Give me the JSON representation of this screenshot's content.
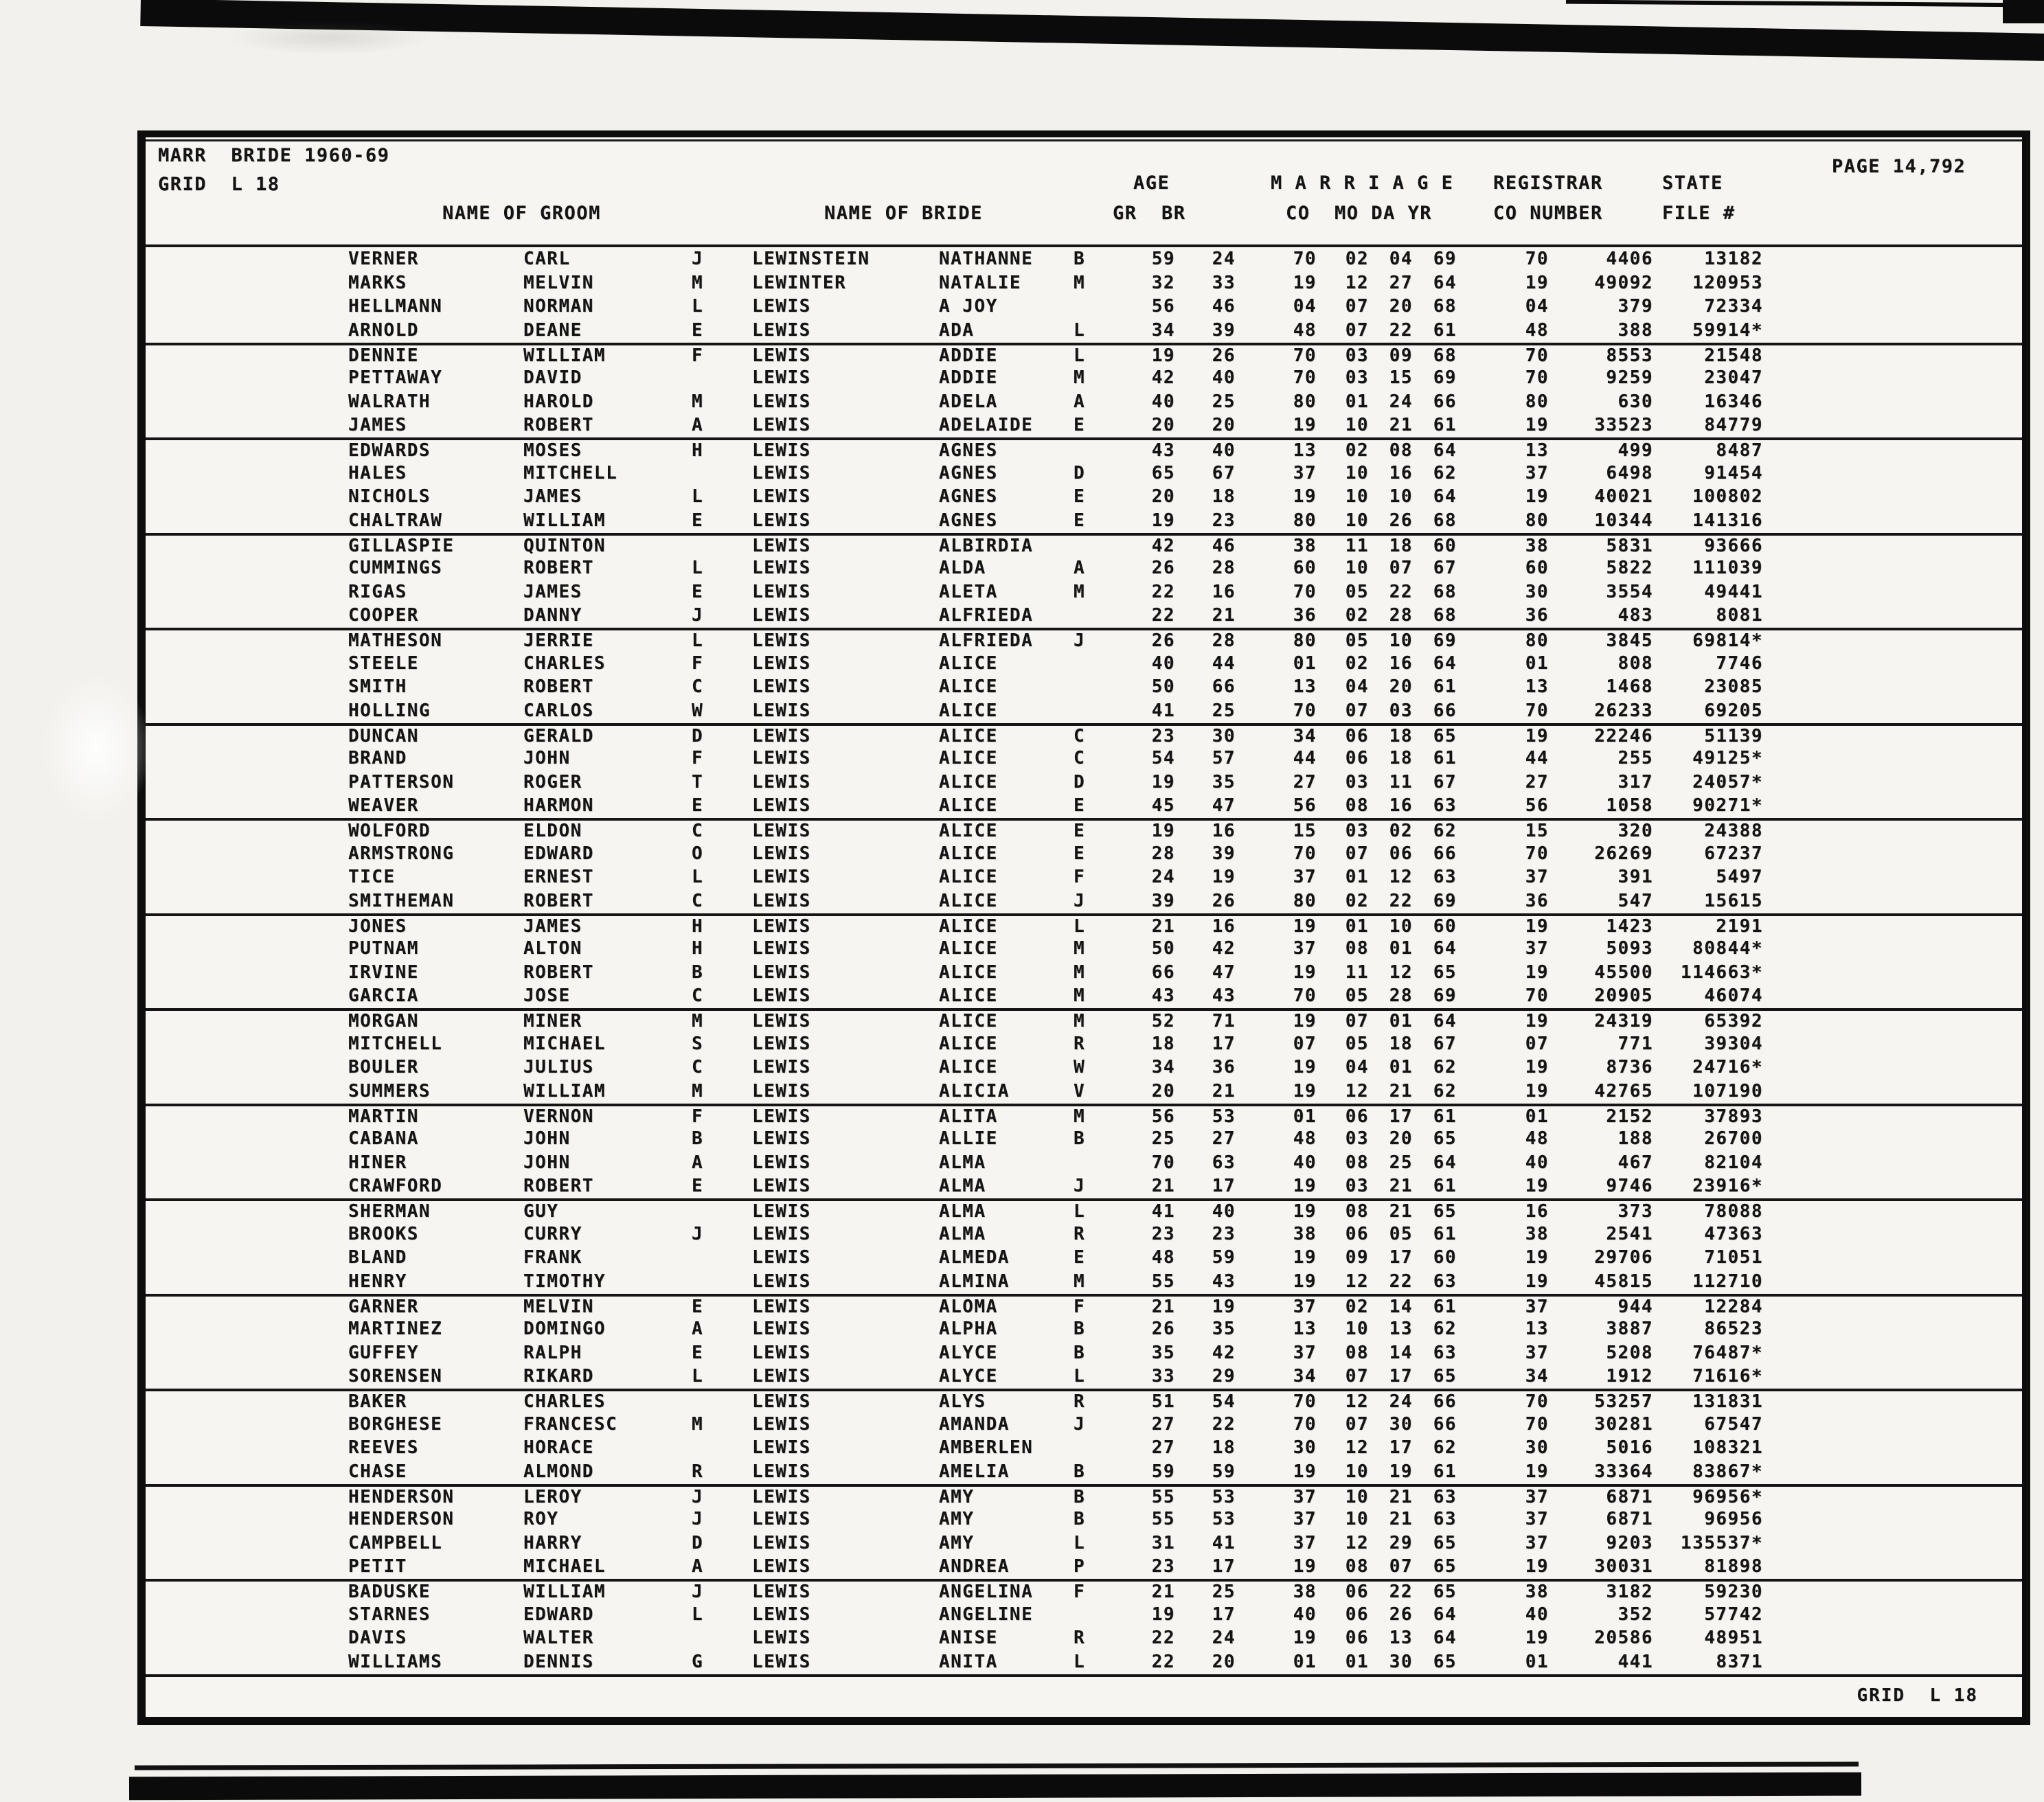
{
  "header": {
    "title_line1": "MARR  BRIDE 1960-69",
    "title_line2": "GRID  L 18",
    "page_label": "PAGE 14,792",
    "grid_footer": "GRID  L 18"
  },
  "columns": {
    "name_of_groom": "NAME OF GROOM",
    "name_of_bride": "NAME OF BRIDE",
    "age": "AGE",
    "age_sub": "GR  BR",
    "marriage": "M A R R I A G E",
    "marriage_sub": "CO  MO DA YR",
    "registrar": "REGISTRAR",
    "registrar_sub": "CO NUMBER",
    "state": "STATE",
    "state_sub": "FILE #"
  },
  "column_keys": [
    "groom-surname",
    "groom-first-name",
    "groom-middle-initial",
    "bride-surname",
    "bride-first-name",
    "bride-middle-initial",
    "age-groom",
    "age-bride",
    "marriage-county",
    "marriage-month",
    "marriage-day",
    "marriage-year",
    "registrar-county",
    "registrar-number",
    "state-file-number"
  ],
  "records": [
    [
      "VERNER",
      "CARL",
      "J",
      "LEWINSTEIN",
      "NATHANNE",
      "B",
      "59",
      "24",
      "70",
      "02",
      "04",
      "69",
      "70",
      "4406",
      "13182"
    ],
    [
      "MARKS",
      "MELVIN",
      "M",
      "LEWINTER",
      "NATALIE",
      "M",
      "32",
      "33",
      "19",
      "12",
      "27",
      "64",
      "19",
      "49092",
      "120953"
    ],
    [
      "HELLMANN",
      "NORMAN",
      "L",
      "LEWIS",
      "A JOY",
      "",
      "56",
      "46",
      "04",
      "07",
      "20",
      "68",
      "04",
      "379",
      "72334"
    ],
    [
      "ARNOLD",
      "DEANE",
      "E",
      "LEWIS",
      "ADA",
      "L",
      "34",
      "39",
      "48",
      "07",
      "22",
      "61",
      "48",
      "388",
      "59914*"
    ],
    [
      "DENNIE",
      "WILLIAM",
      "F",
      "LEWIS",
      "ADDIE",
      "L",
      "19",
      "26",
      "70",
      "03",
      "09",
      "68",
      "70",
      "8553",
      "21548"
    ],
    [
      "PETTAWAY",
      "DAVID",
      "",
      "LEWIS",
      "ADDIE",
      "M",
      "42",
      "40",
      "70",
      "03",
      "15",
      "69",
      "70",
      "9259",
      "23047"
    ],
    [
      "WALRATH",
      "HAROLD",
      "M",
      "LEWIS",
      "ADELA",
      "A",
      "40",
      "25",
      "80",
      "01",
      "24",
      "66",
      "80",
      "630",
      "16346"
    ],
    [
      "JAMES",
      "ROBERT",
      "A",
      "LEWIS",
      "ADELAIDE",
      "E",
      "20",
      "20",
      "19",
      "10",
      "21",
      "61",
      "19",
      "33523",
      "84779"
    ],
    [
      "EDWARDS",
      "MOSES",
      "H",
      "LEWIS",
      "AGNES",
      "",
      "43",
      "40",
      "13",
      "02",
      "08",
      "64",
      "13",
      "499",
      "8487"
    ],
    [
      "HALES",
      "MITCHELL",
      "",
      "LEWIS",
      "AGNES",
      "D",
      "65",
      "67",
      "37",
      "10",
      "16",
      "62",
      "37",
      "6498",
      "91454"
    ],
    [
      "NICHOLS",
      "JAMES",
      "L",
      "LEWIS",
      "AGNES",
      "E",
      "20",
      "18",
      "19",
      "10",
      "10",
      "64",
      "19",
      "40021",
      "100802"
    ],
    [
      "CHALTRAW",
      "WILLIAM",
      "E",
      "LEWIS",
      "AGNES",
      "E",
      "19",
      "23",
      "80",
      "10",
      "26",
      "68",
      "80",
      "10344",
      "141316"
    ],
    [
      "GILLASPIE",
      "QUINTON",
      "",
      "LEWIS",
      "ALBIRDIA",
      "",
      "42",
      "46",
      "38",
      "11",
      "18",
      "60",
      "38",
      "5831",
      "93666"
    ],
    [
      "CUMMINGS",
      "ROBERT",
      "L",
      "LEWIS",
      "ALDA",
      "A",
      "26",
      "28",
      "60",
      "10",
      "07",
      "67",
      "60",
      "5822",
      "111039"
    ],
    [
      "RIGAS",
      "JAMES",
      "E",
      "LEWIS",
      "ALETA",
      "M",
      "22",
      "16",
      "70",
      "05",
      "22",
      "68",
      "30",
      "3554",
      "49441"
    ],
    [
      "COOPER",
      "DANNY",
      "J",
      "LEWIS",
      "ALFRIEDA",
      "",
      "22",
      "21",
      "36",
      "02",
      "28",
      "68",
      "36",
      "483",
      "8081"
    ],
    [
      "MATHESON",
      "JERRIE",
      "L",
      "LEWIS",
      "ALFRIEDA",
      "J",
      "26",
      "28",
      "80",
      "05",
      "10",
      "69",
      "80",
      "3845",
      "69814*"
    ],
    [
      "STEELE",
      "CHARLES",
      "F",
      "LEWIS",
      "ALICE",
      "",
      "40",
      "44",
      "01",
      "02",
      "16",
      "64",
      "01",
      "808",
      "7746"
    ],
    [
      "SMITH",
      "ROBERT",
      "C",
      "LEWIS",
      "ALICE",
      "",
      "50",
      "66",
      "13",
      "04",
      "20",
      "61",
      "13",
      "1468",
      "23085"
    ],
    [
      "HOLLING",
      "CARLOS",
      "W",
      "LEWIS",
      "ALICE",
      "",
      "41",
      "25",
      "70",
      "07",
      "03",
      "66",
      "70",
      "26233",
      "69205"
    ],
    [
      "DUNCAN",
      "GERALD",
      "D",
      "LEWIS",
      "ALICE",
      "C",
      "23",
      "30",
      "34",
      "06",
      "18",
      "65",
      "19",
      "22246",
      "51139"
    ],
    [
      "BRAND",
      "JOHN",
      "F",
      "LEWIS",
      "ALICE",
      "C",
      "54",
      "57",
      "44",
      "06",
      "18",
      "61",
      "44",
      "255",
      "49125*"
    ],
    [
      "PATTERSON",
      "ROGER",
      "T",
      "LEWIS",
      "ALICE",
      "D",
      "19",
      "35",
      "27",
      "03",
      "11",
      "67",
      "27",
      "317",
      "24057*"
    ],
    [
      "WEAVER",
      "HARMON",
      "E",
      "LEWIS",
      "ALICE",
      "E",
      "45",
      "47",
      "56",
      "08",
      "16",
      "63",
      "56",
      "1058",
      "90271*"
    ],
    [
      "WOLFORD",
      "ELDON",
      "C",
      "LEWIS",
      "ALICE",
      "E",
      "19",
      "16",
      "15",
      "03",
      "02",
      "62",
      "15",
      "320",
      "24388"
    ],
    [
      "ARMSTRONG",
      "EDWARD",
      "O",
      "LEWIS",
      "ALICE",
      "E",
      "28",
      "39",
      "70",
      "07",
      "06",
      "66",
      "70",
      "26269",
      "67237"
    ],
    [
      "TICE",
      "ERNEST",
      "L",
      "LEWIS",
      "ALICE",
      "F",
      "24",
      "19",
      "37",
      "01",
      "12",
      "63",
      "37",
      "391",
      "5497"
    ],
    [
      "SMITHEMAN",
      "ROBERT",
      "C",
      "LEWIS",
      "ALICE",
      "J",
      "39",
      "26",
      "80",
      "02",
      "22",
      "69",
      "36",
      "547",
      "15615"
    ],
    [
      "JONES",
      "JAMES",
      "H",
      "LEWIS",
      "ALICE",
      "L",
      "21",
      "16",
      "19",
      "01",
      "10",
      "60",
      "19",
      "1423",
      "2191"
    ],
    [
      "PUTNAM",
      "ALTON",
      "H",
      "LEWIS",
      "ALICE",
      "M",
      "50",
      "42",
      "37",
      "08",
      "01",
      "64",
      "37",
      "5093",
      "80844*"
    ],
    [
      "IRVINE",
      "ROBERT",
      "B",
      "LEWIS",
      "ALICE",
      "M",
      "66",
      "47",
      "19",
      "11",
      "12",
      "65",
      "19",
      "45500",
      "114663*"
    ],
    [
      "GARCIA",
      "JOSE",
      "C",
      "LEWIS",
      "ALICE",
      "M",
      "43",
      "43",
      "70",
      "05",
      "28",
      "69",
      "70",
      "20905",
      "46074"
    ],
    [
      "MORGAN",
      "MINER",
      "M",
      "LEWIS",
      "ALICE",
      "M",
      "52",
      "71",
      "19",
      "07",
      "01",
      "64",
      "19",
      "24319",
      "65392"
    ],
    [
      "MITCHELL",
      "MICHAEL",
      "S",
      "LEWIS",
      "ALICE",
      "R",
      "18",
      "17",
      "07",
      "05",
      "18",
      "67",
      "07",
      "771",
      "39304"
    ],
    [
      "BOULER",
      "JULIUS",
      "C",
      "LEWIS",
      "ALICE",
      "W",
      "34",
      "36",
      "19",
      "04",
      "01",
      "62",
      "19",
      "8736",
      "24716*"
    ],
    [
      "SUMMERS",
      "WILLIAM",
      "M",
      "LEWIS",
      "ALICIA",
      "V",
      "20",
      "21",
      "19",
      "12",
      "21",
      "62",
      "19",
      "42765",
      "107190"
    ],
    [
      "MARTIN",
      "VERNON",
      "F",
      "LEWIS",
      "ALITA",
      "M",
      "56",
      "53",
      "01",
      "06",
      "17",
      "61",
      "01",
      "2152",
      "37893"
    ],
    [
      "CABANA",
      "JOHN",
      "B",
      "LEWIS",
      "ALLIE",
      "B",
      "25",
      "27",
      "48",
      "03",
      "20",
      "65",
      "48",
      "188",
      "26700"
    ],
    [
      "HINER",
      "JOHN",
      "A",
      "LEWIS",
      "ALMA",
      "",
      "70",
      "63",
      "40",
      "08",
      "25",
      "64",
      "40",
      "467",
      "82104"
    ],
    [
      "CRAWFORD",
      "ROBERT",
      "E",
      "LEWIS",
      "ALMA",
      "J",
      "21",
      "17",
      "19",
      "03",
      "21",
      "61",
      "19",
      "9746",
      "23916*"
    ],
    [
      "SHERMAN",
      "GUY",
      "",
      "LEWIS",
      "ALMA",
      "L",
      "41",
      "40",
      "19",
      "08",
      "21",
      "65",
      "16",
      "373",
      "78088"
    ],
    [
      "BROOKS",
      "CURRY",
      "J",
      "LEWIS",
      "ALMA",
      "R",
      "23",
      "23",
      "38",
      "06",
      "05",
      "61",
      "38",
      "2541",
      "47363"
    ],
    [
      "BLAND",
      "FRANK",
      "",
      "LEWIS",
      "ALMEDA",
      "E",
      "48",
      "59",
      "19",
      "09",
      "17",
      "60",
      "19",
      "29706",
      "71051"
    ],
    [
      "HENRY",
      "TIMOTHY",
      "",
      "LEWIS",
      "ALMINA",
      "M",
      "55",
      "43",
      "19",
      "12",
      "22",
      "63",
      "19",
      "45815",
      "112710"
    ],
    [
      "GARNER",
      "MELVIN",
      "E",
      "LEWIS",
      "ALOMA",
      "F",
      "21",
      "19",
      "37",
      "02",
      "14",
      "61",
      "37",
      "944",
      "12284"
    ],
    [
      "MARTINEZ",
      "DOMINGO",
      "A",
      "LEWIS",
      "ALPHA",
      "B",
      "26",
      "35",
      "13",
      "10",
      "13",
      "62",
      "13",
      "3887",
      "86523"
    ],
    [
      "GUFFEY",
      "RALPH",
      "E",
      "LEWIS",
      "ALYCE",
      "B",
      "35",
      "42",
      "37",
      "08",
      "14",
      "63",
      "37",
      "5208",
      "76487*"
    ],
    [
      "SORENSEN",
      "RIKARD",
      "L",
      "LEWIS",
      "ALYCE",
      "L",
      "33",
      "29",
      "34",
      "07",
      "17",
      "65",
      "34",
      "1912",
      "71616*"
    ],
    [
      "BAKER",
      "CHARLES",
      "",
      "LEWIS",
      "ALYS",
      "R",
      "51",
      "54",
      "70",
      "12",
      "24",
      "66",
      "70",
      "53257",
      "131831"
    ],
    [
      "BORGHESE",
      "FRANCESC",
      "M",
      "LEWIS",
      "AMANDA",
      "J",
      "27",
      "22",
      "70",
      "07",
      "30",
      "66",
      "70",
      "30281",
      "67547"
    ],
    [
      "REEVES",
      "HORACE",
      "",
      "LEWIS",
      "AMBERLEN",
      "",
      "27",
      "18",
      "30",
      "12",
      "17",
      "62",
      "30",
      "5016",
      "108321"
    ],
    [
      "CHASE",
      "ALMOND",
      "R",
      "LEWIS",
      "AMELIA",
      "B",
      "59",
      "59",
      "19",
      "10",
      "19",
      "61",
      "19",
      "33364",
      "83867*"
    ],
    [
      "HENDERSON",
      "LEROY",
      "J",
      "LEWIS",
      "AMY",
      "B",
      "55",
      "53",
      "37",
      "10",
      "21",
      "63",
      "37",
      "6871",
      "96956*"
    ],
    [
      "HENDERSON",
      "ROY",
      "J",
      "LEWIS",
      "AMY",
      "B",
      "55",
      "53",
      "37",
      "10",
      "21",
      "63",
      "37",
      "6871",
      "96956"
    ],
    [
      "CAMPBELL",
      "HARRY",
      "D",
      "LEWIS",
      "AMY",
      "L",
      "31",
      "41",
      "37",
      "12",
      "29",
      "65",
      "37",
      "9203",
      "135537*"
    ],
    [
      "PETIT",
      "MICHAEL",
      "A",
      "LEWIS",
      "ANDREA",
      "P",
      "23",
      "17",
      "19",
      "08",
      "07",
      "65",
      "19",
      "30031",
      "81898"
    ],
    [
      "BADUSKE",
      "WILLIAM",
      "J",
      "LEWIS",
      "ANGELINA",
      "F",
      "21",
      "25",
      "38",
      "06",
      "22",
      "65",
      "38",
      "3182",
      "59230"
    ],
    [
      "STARNES",
      "EDWARD",
      "L",
      "LEWIS",
      "ANGELINE",
      "",
      "19",
      "17",
      "40",
      "06",
      "26",
      "64",
      "40",
      "352",
      "57742"
    ],
    [
      "DAVIS",
      "WALTER",
      "",
      "LEWIS",
      "ANISE",
      "R",
      "22",
      "24",
      "19",
      "06",
      "13",
      "64",
      "19",
      "20586",
      "48951"
    ],
    [
      "WILLIAMS",
      "DENNIS",
      "G",
      "LEWIS",
      "ANITA",
      "L",
      "22",
      "20",
      "01",
      "01",
      "30",
      "65",
      "01",
      "441",
      "8371"
    ]
  ]
}
